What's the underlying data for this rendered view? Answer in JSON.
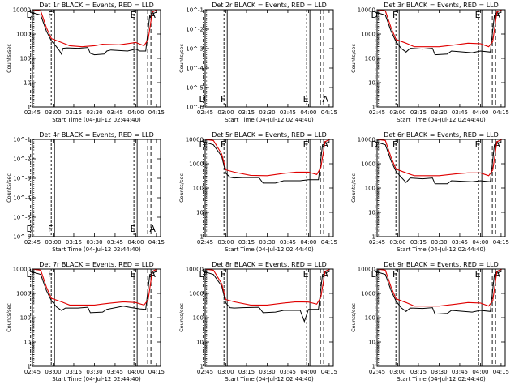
{
  "chart_data": {
    "type": "line",
    "layout": "3x3 grid",
    "x_ticks": [
      "02:45",
      "03:00",
      "03:15",
      "03:30",
      "03:45",
      "04:00",
      "04:15"
    ],
    "x_label": "Start Time (04-Jul-12 02:44:40)",
    "y_label": "Counts/sec",
    "y_ticks_counts": [
      "1",
      "10",
      "100",
      "1000",
      "10000"
    ],
    "y_ticks_small": [
      "10^-1",
      "10^-2",
      "10^-3",
      "10^-4",
      "10^-5",
      "10^-6"
    ],
    "colors": {
      "events": "#000000",
      "lld": "#e00000"
    },
    "panels": [
      {
        "title": "Det 1r  BLACK = Events, RED = LLD",
        "scale": "counts",
        "has_data": true,
        "markers": [
          {
            "x": "02:46",
            "t": "D"
          },
          {
            "x": "03:01",
            "t": "F"
          },
          {
            "x": "04:01",
            "t": "E"
          },
          {
            "x": "04:11",
            "t": "A"
          }
        ],
        "events": [
          [
            2.75,
            7600
          ],
          [
            2.85,
            6000
          ],
          [
            2.92,
            1300
          ],
          [
            2.98,
            520
          ],
          [
            3.04,
            300
          ],
          [
            3.08,
            200
          ],
          [
            3.1,
            150
          ],
          [
            3.12,
            260
          ],
          [
            3.17,
            270
          ],
          [
            3.3,
            260
          ],
          [
            3.42,
            280
          ],
          [
            3.45,
            160
          ],
          [
            3.5,
            140
          ],
          [
            3.62,
            150
          ],
          [
            3.65,
            200
          ],
          [
            3.7,
            220
          ],
          [
            3.9,
            200
          ],
          [
            4.0,
            240
          ],
          [
            4.05,
            200
          ],
          [
            4.12,
            200
          ],
          [
            4.17,
            6000
          ],
          [
            4.25,
            8000
          ]
        ],
        "lld": [
          [
            2.75,
            10000
          ],
          [
            2.85,
            9000
          ],
          [
            2.92,
            1800
          ],
          [
            2.98,
            650
          ],
          [
            3.1,
            450
          ],
          [
            3.2,
            330
          ],
          [
            3.35,
            300
          ],
          [
            3.5,
            330
          ],
          [
            3.6,
            380
          ],
          [
            3.8,
            360
          ],
          [
            4.0,
            450
          ],
          [
            4.1,
            330
          ],
          [
            4.15,
            600
          ],
          [
            4.2,
            8000
          ],
          [
            4.26,
            10000
          ]
        ]
      },
      {
        "title": "Det 2r  BLACK = Events, RED = LLD",
        "scale": "small",
        "has_data": false,
        "markers": [
          {
            "x": "02:46",
            "t": "D"
          },
          {
            "x": "03:01",
            "t": "F"
          },
          {
            "x": "04:01",
            "t": "E"
          },
          {
            "x": "04:11",
            "t": "A"
          }
        ]
      },
      {
        "title": "Det 3r  BLACK = Events, RED = LLD",
        "scale": "counts",
        "has_data": true,
        "markers": [
          {
            "x": "02:46",
            "t": "D"
          },
          {
            "x": "03:01",
            "t": "F"
          },
          {
            "x": "04:01",
            "t": "E"
          },
          {
            "x": "04:11",
            "t": "A"
          }
        ],
        "events": [
          [
            2.75,
            7600
          ],
          [
            2.85,
            6000
          ],
          [
            2.92,
            1300
          ],
          [
            2.98,
            480
          ],
          [
            3.04,
            260
          ],
          [
            3.1,
            180
          ],
          [
            3.15,
            260
          ],
          [
            3.3,
            240
          ],
          [
            3.42,
            260
          ],
          [
            3.45,
            140
          ],
          [
            3.6,
            150
          ],
          [
            3.65,
            200
          ],
          [
            3.9,
            170
          ],
          [
            4.0,
            200
          ],
          [
            4.12,
            180
          ],
          [
            4.17,
            6000
          ],
          [
            4.25,
            8000
          ]
        ],
        "lld": [
          [
            2.75,
            10000
          ],
          [
            2.85,
            9000
          ],
          [
            2.92,
            1800
          ],
          [
            2.98,
            600
          ],
          [
            3.1,
            420
          ],
          [
            3.2,
            300
          ],
          [
            3.5,
            300
          ],
          [
            3.7,
            360
          ],
          [
            3.85,
            420
          ],
          [
            4.0,
            400
          ],
          [
            4.1,
            300
          ],
          [
            4.15,
            500
          ],
          [
            4.2,
            8000
          ],
          [
            4.26,
            10000
          ]
        ]
      },
      {
        "title": "Det 4r  BLACK = Events, RED = LLD",
        "scale": "small",
        "has_data": false,
        "markers": [
          {
            "x": "02:46",
            "t": "D"
          },
          {
            "x": "03:01",
            "t": "F"
          },
          {
            "x": "04:01",
            "t": "E"
          },
          {
            "x": "04:11",
            "t": "A"
          }
        ]
      },
      {
        "title": "Det 5r  BLACK = Events, RED = LLD",
        "scale": "counts",
        "has_data": true,
        "markers": [
          {
            "x": "02:46",
            "t": "D"
          },
          {
            "x": "03:01",
            "t": "F"
          },
          {
            "x": "04:01",
            "t": "E"
          },
          {
            "x": "04:11",
            "t": "A"
          }
        ],
        "events": [
          [
            2.75,
            7600
          ],
          [
            2.85,
            6000
          ],
          [
            2.95,
            2000
          ],
          [
            3.0,
            400
          ],
          [
            3.05,
            280
          ],
          [
            3.1,
            260
          ],
          [
            3.2,
            270
          ],
          [
            3.4,
            270
          ],
          [
            3.45,
            160
          ],
          [
            3.6,
            160
          ],
          [
            3.7,
            200
          ],
          [
            3.9,
            200
          ],
          [
            4.0,
            220
          ],
          [
            4.12,
            220
          ],
          [
            4.17,
            6000
          ],
          [
            4.25,
            8000
          ]
        ],
        "lld": [
          [
            2.75,
            10000
          ],
          [
            2.85,
            9000
          ],
          [
            2.95,
            2500
          ],
          [
            3.0,
            560
          ],
          [
            3.1,
            450
          ],
          [
            3.3,
            330
          ],
          [
            3.5,
            320
          ],
          [
            3.7,
            400
          ],
          [
            3.85,
            450
          ],
          [
            4.0,
            450
          ],
          [
            4.1,
            360
          ],
          [
            4.15,
            700
          ],
          [
            4.2,
            8000
          ],
          [
            4.26,
            10000
          ]
        ]
      },
      {
        "title": "Det 6r  BLACK = Events, RED = LLD",
        "scale": "counts",
        "has_data": true,
        "markers": [
          {
            "x": "02:46",
            "t": "D"
          },
          {
            "x": "03:01",
            "t": "F"
          },
          {
            "x": "04:01",
            "t": "E"
          },
          {
            "x": "04:11",
            "t": "A"
          }
        ],
        "events": [
          [
            2.75,
            7600
          ],
          [
            2.85,
            6000
          ],
          [
            2.92,
            1300
          ],
          [
            2.98,
            480
          ],
          [
            3.04,
            280
          ],
          [
            3.1,
            170
          ],
          [
            3.15,
            260
          ],
          [
            3.3,
            240
          ],
          [
            3.42,
            260
          ],
          [
            3.45,
            150
          ],
          [
            3.6,
            150
          ],
          [
            3.65,
            200
          ],
          [
            3.9,
            180
          ],
          [
            4.0,
            200
          ],
          [
            4.12,
            180
          ],
          [
            4.17,
            6000
          ],
          [
            4.25,
            8000
          ]
        ],
        "lld": [
          [
            2.75,
            10000
          ],
          [
            2.85,
            9000
          ],
          [
            2.92,
            1800
          ],
          [
            2.98,
            600
          ],
          [
            3.1,
            420
          ],
          [
            3.2,
            320
          ],
          [
            3.5,
            320
          ],
          [
            3.7,
            380
          ],
          [
            3.85,
            420
          ],
          [
            4.0,
            420
          ],
          [
            4.1,
            320
          ],
          [
            4.15,
            550
          ],
          [
            4.2,
            8000
          ],
          [
            4.26,
            10000
          ]
        ]
      },
      {
        "title": "Det 7r  BLACK = Events, RED = LLD",
        "scale": "counts",
        "has_data": true,
        "markers": [
          {
            "x": "02:46",
            "t": "D"
          },
          {
            "x": "03:01",
            "t": "F"
          },
          {
            "x": "04:01",
            "t": "E"
          },
          {
            "x": "04:11",
            "t": "A"
          }
        ],
        "events": [
          [
            2.75,
            7600
          ],
          [
            2.85,
            6000
          ],
          [
            2.92,
            1300
          ],
          [
            2.98,
            500
          ],
          [
            3.04,
            280
          ],
          [
            3.1,
            200
          ],
          [
            3.15,
            250
          ],
          [
            3.3,
            250
          ],
          [
            3.42,
            270
          ],
          [
            3.45,
            160
          ],
          [
            3.6,
            170
          ],
          [
            3.65,
            220
          ],
          [
            3.85,
            300
          ],
          [
            3.95,
            260
          ],
          [
            4.05,
            230
          ],
          [
            4.12,
            220
          ],
          [
            4.17,
            6000
          ],
          [
            4.25,
            8000
          ]
        ],
        "lld": [
          [
            2.75,
            10000
          ],
          [
            2.85,
            9000
          ],
          [
            2.92,
            1800
          ],
          [
            2.98,
            620
          ],
          [
            3.1,
            450
          ],
          [
            3.2,
            330
          ],
          [
            3.5,
            330
          ],
          [
            3.7,
            400
          ],
          [
            3.85,
            450
          ],
          [
            4.0,
            420
          ],
          [
            4.1,
            330
          ],
          [
            4.15,
            550
          ],
          [
            4.2,
            8000
          ],
          [
            4.26,
            10000
          ]
        ]
      },
      {
        "title": "Det 8r  BLACK = Events, RED = LLD",
        "scale": "counts",
        "has_data": true,
        "markers": [
          {
            "x": "02:46",
            "t": "D"
          },
          {
            "x": "03:01",
            "t": "F"
          },
          {
            "x": "04:01",
            "t": "E"
          },
          {
            "x": "04:11",
            "t": "A"
          }
        ],
        "events": [
          [
            2.75,
            7600
          ],
          [
            2.85,
            6000
          ],
          [
            2.95,
            2000
          ],
          [
            3.0,
            400
          ],
          [
            3.05,
            260
          ],
          [
            3.1,
            250
          ],
          [
            3.2,
            260
          ],
          [
            3.4,
            270
          ],
          [
            3.45,
            160
          ],
          [
            3.6,
            170
          ],
          [
            3.7,
            200
          ],
          [
            3.9,
            200
          ],
          [
            3.95,
            70
          ],
          [
            4.0,
            220
          ],
          [
            4.12,
            220
          ],
          [
            4.17,
            6000
          ],
          [
            4.25,
            8000
          ]
        ],
        "lld": [
          [
            2.75,
            10000
          ],
          [
            2.85,
            9000
          ],
          [
            2.95,
            2500
          ],
          [
            3.0,
            560
          ],
          [
            3.1,
            450
          ],
          [
            3.3,
            330
          ],
          [
            3.5,
            330
          ],
          [
            3.7,
            400
          ],
          [
            3.85,
            450
          ],
          [
            4.0,
            440
          ],
          [
            4.1,
            360
          ],
          [
            4.15,
            700
          ],
          [
            4.2,
            8000
          ],
          [
            4.26,
            10000
          ]
        ]
      },
      {
        "title": "Det 9r  BLACK = Events, RED = LLD",
        "scale": "counts",
        "has_data": true,
        "markers": [
          {
            "x": "02:46",
            "t": "D"
          },
          {
            "x": "03:01",
            "t": "F"
          },
          {
            "x": "04:01",
            "t": "E"
          },
          {
            "x": "04:11",
            "t": "A"
          }
        ],
        "events": [
          [
            2.75,
            7600
          ],
          [
            2.85,
            6000
          ],
          [
            2.92,
            1300
          ],
          [
            2.98,
            480
          ],
          [
            3.04,
            260
          ],
          [
            3.1,
            180
          ],
          [
            3.15,
            250
          ],
          [
            3.3,
            240
          ],
          [
            3.42,
            260
          ],
          [
            3.45,
            140
          ],
          [
            3.6,
            150
          ],
          [
            3.65,
            200
          ],
          [
            3.9,
            170
          ],
          [
            4.0,
            200
          ],
          [
            4.12,
            180
          ],
          [
            4.17,
            6000
          ],
          [
            4.25,
            8000
          ]
        ],
        "lld": [
          [
            2.75,
            10000
          ],
          [
            2.85,
            9000
          ],
          [
            2.92,
            1800
          ],
          [
            2.98,
            600
          ],
          [
            3.1,
            420
          ],
          [
            3.2,
            300
          ],
          [
            3.5,
            300
          ],
          [
            3.7,
            360
          ],
          [
            3.85,
            420
          ],
          [
            4.0,
            400
          ],
          [
            4.1,
            300
          ],
          [
            4.15,
            500
          ],
          [
            4.2,
            8000
          ],
          [
            4.26,
            10000
          ]
        ]
      }
    ]
  }
}
